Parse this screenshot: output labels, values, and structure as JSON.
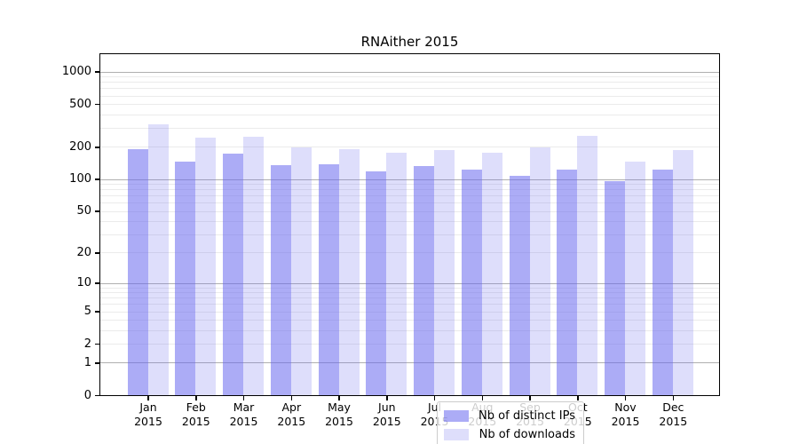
{
  "title": "RNAither 2015",
  "legend": {
    "items": [
      {
        "label": "Nb of distinct IPs",
        "color": "rgba(104,104,239,0.55)"
      },
      {
        "label": "Nb of downloads",
        "color": "rgba(104,104,239,0.22)"
      }
    ]
  },
  "chart_data": {
    "type": "bar",
    "title": "RNAither 2015",
    "categories": [
      "Jan 2015",
      "Feb 2015",
      "Mar 2015",
      "Apr 2015",
      "May 2015",
      "Jun 2015",
      "Jul 2015",
      "Aug 2015",
      "Sep 2015",
      "Oct 2015",
      "Nov 2015",
      "Dec 2015"
    ],
    "series": [
      {
        "name": "Nb of distinct IPs",
        "color": "rgba(104,104,239,0.55)",
        "values": [
          190,
          145,
          174,
          136,
          137,
          118,
          133,
          122,
          108,
          123,
          96,
          122
        ]
      },
      {
        "name": "Nb of downloads",
        "color": "rgba(104,104,239,0.22)",
        "values": [
          324,
          244,
          250,
          197,
          189,
          176,
          188,
          176,
          199,
          252,
          146,
          186
        ]
      }
    ],
    "xlabel": "",
    "ylabel": "",
    "yscale": "log10(1+y)",
    "yticks": [
      0,
      1,
      2,
      5,
      10,
      20,
      50,
      100,
      200,
      500,
      1000
    ],
    "ylim": [
      0,
      1450
    ],
    "grid": {
      "major_at": [
        1,
        10,
        100,
        1000
      ],
      "minor_multiples": [
        2,
        3,
        4,
        5,
        6,
        7,
        8,
        9
      ],
      "minor_decades": [
        1,
        10,
        100
      ]
    },
    "legend_position": "inside bottom-center"
  }
}
